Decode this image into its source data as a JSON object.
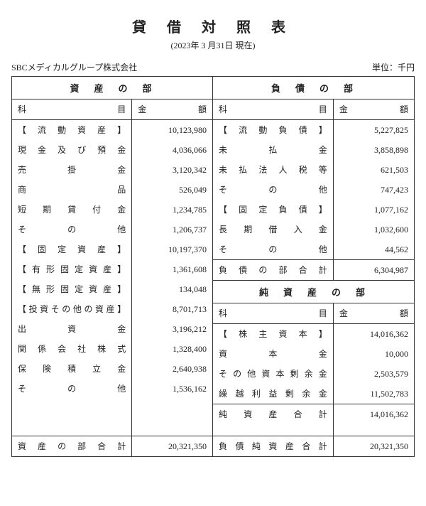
{
  "title": "貸 借 対 照 表",
  "date": "(2023年 3 月31日 現在)",
  "company": "SBCメディカルグループ株式会社",
  "unit": "単位：千円",
  "sections": {
    "assets": "資　産　の　部",
    "liabilities": "負　債　の　部",
    "equity": "純　資　産　の　部"
  },
  "headers": {
    "item": "科　　　目",
    "amount": "金　　　額"
  },
  "assets": [
    {
      "label": "【 流 動 資 産 】",
      "amount": "10,123,980"
    },
    {
      "label": "現 金 及 び 預 金",
      "amount": "4,036,066"
    },
    {
      "label": "売　掛　金",
      "amount": "3,120,342"
    },
    {
      "label": "商　　　品",
      "amount": "526,049"
    },
    {
      "label": "短 期 貸 付 金",
      "amount": "1,234,785"
    },
    {
      "label": "そ　の　他",
      "amount": "1,206,737"
    },
    {
      "label": "【 固 定 資 産 】",
      "amount": "10,197,370"
    },
    {
      "label": "【 有 形 固 定 資 産 】",
      "amount": "1,361,608"
    },
    {
      "label": "【 無 形 固 定 資 産 】",
      "amount": "134,048"
    },
    {
      "label": "【投資その他の資産】",
      "amount": "8,701,713"
    },
    {
      "label": "出　資　金",
      "amount": "3,196,212"
    },
    {
      "label": "関 係 会 社 株 式",
      "amount": "1,328,400"
    },
    {
      "label": "保 険 積 立 金",
      "amount": "2,640,938"
    },
    {
      "label": "そ　の　他",
      "amount": "1,536,162"
    }
  ],
  "assets_total": {
    "label": "資 産 の 部 合 計",
    "amount": "20,321,350"
  },
  "liabilities": [
    {
      "label": "【 流 動 負 債 】",
      "amount": "5,227,825"
    },
    {
      "label": "未　払　金",
      "amount": "3,858,898"
    },
    {
      "label": "未 払 法 人 税 等",
      "amount": "621,503"
    },
    {
      "label": "そ　の　他",
      "amount": "747,423"
    },
    {
      "label": "【 固 定 負 債 】",
      "amount": "1,077,162"
    },
    {
      "label": "長 期 借 入 金",
      "amount": "1,032,600"
    },
    {
      "label": "そ　の　他",
      "amount": "44,562"
    }
  ],
  "liabilities_total": {
    "label": "負 債 の 部 合 計",
    "amount": "6,304,987"
  },
  "equity": [
    {
      "label": "【 株 主 資 本 】",
      "amount": "14,016,362"
    },
    {
      "label": "資　本　金",
      "amount": "10,000"
    },
    {
      "label": "その他資本剰余金",
      "amount": "2,503,579"
    },
    {
      "label": "繰 越 利 益 剰 余 金",
      "amount": "11,502,783"
    }
  ],
  "equity_total": {
    "label": "純 資 産 合 計",
    "amount": "14,016,362"
  },
  "grand_total": {
    "label": "負 債 純 資 産 合 計",
    "amount": "20,321,350"
  }
}
